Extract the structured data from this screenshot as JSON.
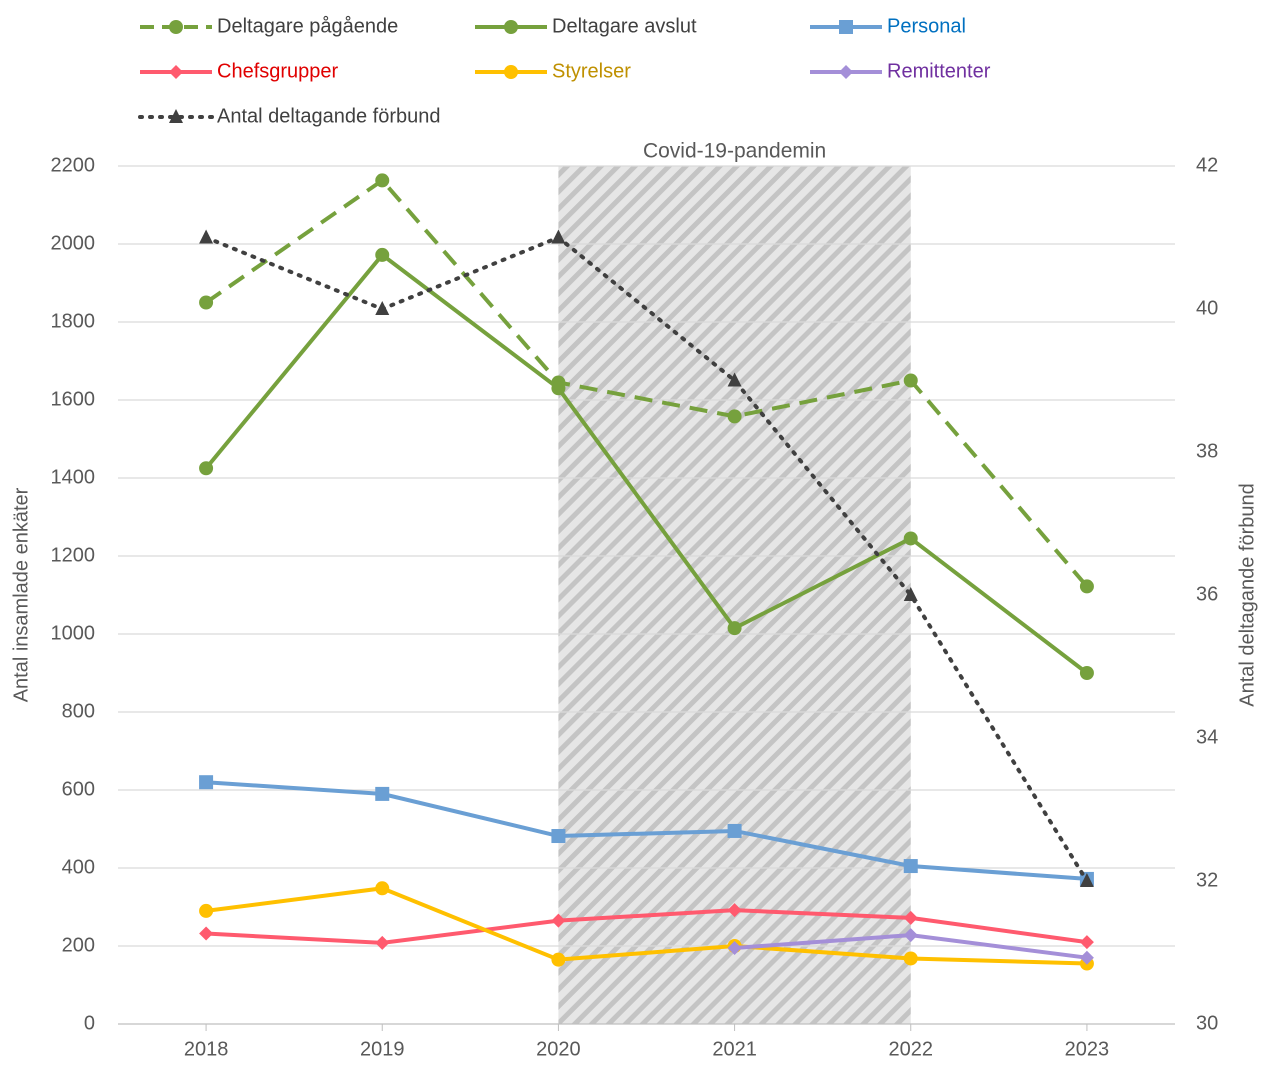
{
  "chart_data": {
    "type": "line",
    "categories": [
      "2018",
      "2019",
      "2020",
      "2021",
      "2022",
      "2023"
    ],
    "ylabel": "Antal insamlade enkäter",
    "y2label": "Antal deltagande förbund",
    "ylim": [
      0,
      2200
    ],
    "yticks": [
      0,
      200,
      400,
      600,
      800,
      1000,
      1200,
      1400,
      1600,
      1800,
      2000,
      2200
    ],
    "y2lim": [
      30,
      42
    ],
    "y2ticks": [
      30,
      32,
      34,
      36,
      38,
      40,
      42
    ],
    "grid": true,
    "legend": "top",
    "annotation": {
      "text": "Covid-19-pandemin",
      "from": "2020",
      "to": "2022"
    },
    "series": [
      {
        "name": "Deltagare pågående",
        "color": "#76a13d",
        "label_color": "#404040",
        "marker": "circle",
        "dash": "dashed",
        "values": [
          1850,
          2163,
          1645,
          1558,
          1650,
          1122
        ]
      },
      {
        "name": "Deltagare avslut",
        "color": "#76a13d",
        "label_color": "#404040",
        "marker": "circle",
        "dash": "solid",
        "values": [
          1425,
          1972,
          1630,
          1015,
          1245,
          900
        ]
      },
      {
        "name": "Personal",
        "color": "#6a9fd4",
        "label_color": "#0070c0",
        "marker": "square",
        "dash": "solid",
        "values": [
          620,
          590,
          482,
          495,
          405,
          372
        ]
      },
      {
        "name": "Chefsgrupper",
        "color": "#ff5a6e",
        "label_color": "#e00000",
        "marker": "diamond",
        "dash": "solid",
        "values": [
          232,
          208,
          265,
          292,
          272,
          210
        ]
      },
      {
        "name": "Styrelser",
        "color": "#ffc000",
        "label_color": "#bf9000",
        "marker": "circle",
        "dash": "solid",
        "values": [
          290,
          348,
          165,
          200,
          168,
          155
        ]
      },
      {
        "name": "Remittenter",
        "color": "#a48fd8",
        "label_color": "#7030a0",
        "marker": "diamond",
        "dash": "solid",
        "values": [
          null,
          null,
          null,
          195,
          228,
          170
        ]
      },
      {
        "name": "Antal deltagande förbund",
        "color": "#404040",
        "label_color": "#404040",
        "marker": "triangle",
        "dash": "dotted",
        "axis": "y2",
        "values": [
          41,
          40,
          41,
          39,
          36,
          32
        ]
      }
    ]
  }
}
